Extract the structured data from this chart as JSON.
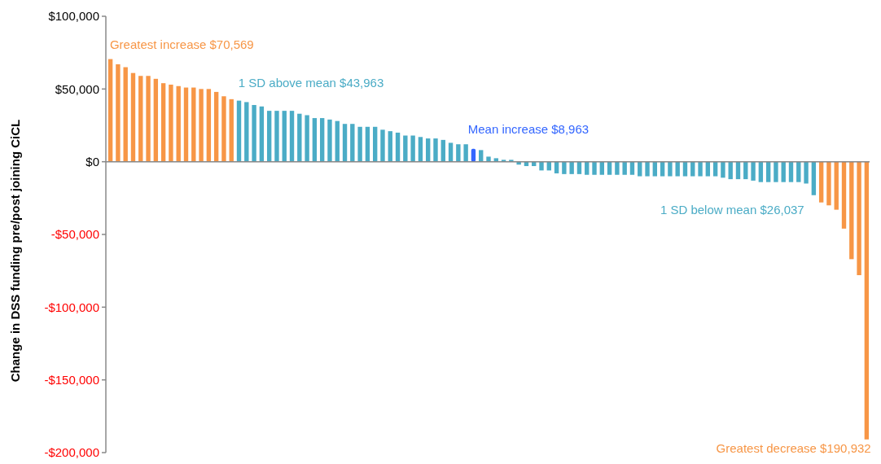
{
  "chart_data": {
    "type": "bar",
    "ylabel": "Change in DSS funding pre/post joining CiCL",
    "categories": [
      null,
      null,
      null,
      null,
      null,
      null,
      null,
      null,
      null,
      null,
      null,
      null,
      null,
      null,
      null,
      null,
      null,
      null,
      null,
      null,
      null,
      null,
      null,
      null,
      null,
      null,
      null,
      null,
      null,
      null,
      null,
      null,
      null,
      null,
      null,
      null,
      null,
      null,
      null,
      null,
      null,
      null,
      null,
      null,
      null,
      null,
      null,
      null,
      null,
      null,
      null,
      null,
      null,
      null,
      null,
      null,
      null,
      null,
      null,
      null,
      null,
      null,
      null,
      null,
      null,
      null,
      null,
      null,
      null,
      null,
      null,
      null,
      null,
      null,
      null,
      null,
      null,
      null,
      null,
      null,
      null,
      null,
      null,
      null,
      null,
      null,
      null,
      null,
      null,
      null,
      null,
      null,
      null,
      null,
      null,
      null,
      null,
      null,
      null,
      null,
      null
    ],
    "values": [
      70569,
      67000,
      65000,
      61000,
      59000,
      59000,
      57000,
      54000,
      53000,
      52000,
      51000,
      51000,
      50000,
      50000,
      48000,
      45000,
      43000,
      42000,
      41000,
      39000,
      38000,
      35000,
      35000,
      35000,
      35000,
      33000,
      32000,
      30000,
      30000,
      29000,
      28000,
      26000,
      26000,
      24000,
      24000,
      24000,
      22000,
      21000,
      20000,
      18000,
      18000,
      17000,
      16000,
      16000,
      15000,
      13000,
      12000,
      12000,
      8963,
      8000,
      3500,
      2400,
      1300,
      1300,
      -2000,
      -3000,
      -3000,
      -6000,
      -6000,
      -8000,
      -8500,
      -8500,
      -8500,
      -9000,
      -9000,
      -9000,
      -9000,
      -9000,
      -9000,
      -9000,
      -10000,
      -10000,
      -10000,
      -10000,
      -10000,
      -10000,
      -10000,
      -10000,
      -10000,
      -10000,
      -10000,
      -11000,
      -12000,
      -12000,
      -12000,
      -13000,
      -14000,
      -14000,
      -14000,
      -14000,
      -14000,
      -14000,
      -15000,
      -23000,
      -28000,
      -30000,
      -33000,
      -46000,
      -67000,
      -78000,
      -190932
    ],
    "colors": [
      "#f79646",
      "#f79646",
      "#f79646",
      "#f79646",
      "#f79646",
      "#f79646",
      "#f79646",
      "#f79646",
      "#f79646",
      "#f79646",
      "#f79646",
      "#f79646",
      "#f79646",
      "#f79646",
      "#f79646",
      "#f79646",
      "#f79646",
      "#4bacc6",
      "#4bacc6",
      "#4bacc6",
      "#4bacc6",
      "#4bacc6",
      "#4bacc6",
      "#4bacc6",
      "#4bacc6",
      "#4bacc6",
      "#4bacc6",
      "#4bacc6",
      "#4bacc6",
      "#4bacc6",
      "#4bacc6",
      "#4bacc6",
      "#4bacc6",
      "#4bacc6",
      "#4bacc6",
      "#4bacc6",
      "#4bacc6",
      "#4bacc6",
      "#4bacc6",
      "#4bacc6",
      "#4bacc6",
      "#4bacc6",
      "#4bacc6",
      "#4bacc6",
      "#4bacc6",
      "#4bacc6",
      "#4bacc6",
      "#4bacc6",
      "#3366ff",
      "#4bacc6",
      "#4bacc6",
      "#4bacc6",
      "#4bacc6",
      "#4bacc6",
      "#4bacc6",
      "#4bacc6",
      "#4bacc6",
      "#4bacc6",
      "#4bacc6",
      "#4bacc6",
      "#4bacc6",
      "#4bacc6",
      "#4bacc6",
      "#4bacc6",
      "#4bacc6",
      "#4bacc6",
      "#4bacc6",
      "#4bacc6",
      "#4bacc6",
      "#4bacc6",
      "#4bacc6",
      "#4bacc6",
      "#4bacc6",
      "#4bacc6",
      "#4bacc6",
      "#4bacc6",
      "#4bacc6",
      "#4bacc6",
      "#4bacc6",
      "#4bacc6",
      "#4bacc6",
      "#4bacc6",
      "#4bacc6",
      "#4bacc6",
      "#4bacc6",
      "#4bacc6",
      "#4bacc6",
      "#4bacc6",
      "#4bacc6",
      "#4bacc6",
      "#4bacc6",
      "#4bacc6",
      "#4bacc6",
      "#4bacc6",
      "#f79646",
      "#f79646",
      "#f79646",
      "#f79646",
      "#f79646",
      "#f79646",
      "#f79646"
    ],
    "ylim": [
      -200000,
      100000
    ],
    "yticks": [
      {
        "value": 100000,
        "label": "$100,000"
      },
      {
        "value": 50000,
        "label": "$50,000"
      },
      {
        "value": 0,
        "label": "$0"
      },
      {
        "value": -50000,
        "label": "-$50,000"
      },
      {
        "value": -100000,
        "label": "-$100,000"
      },
      {
        "value": -150000,
        "label": "-$150,000"
      },
      {
        "value": -200000,
        "label": "-$200,000"
      }
    ],
    "annotations": [
      "Greatest increase $70,569",
      "1 SD above mean $43,963",
      "Mean increase $8,963",
      "1 SD below mean $26,037",
      "Greatest decrease $190,932"
    ]
  }
}
